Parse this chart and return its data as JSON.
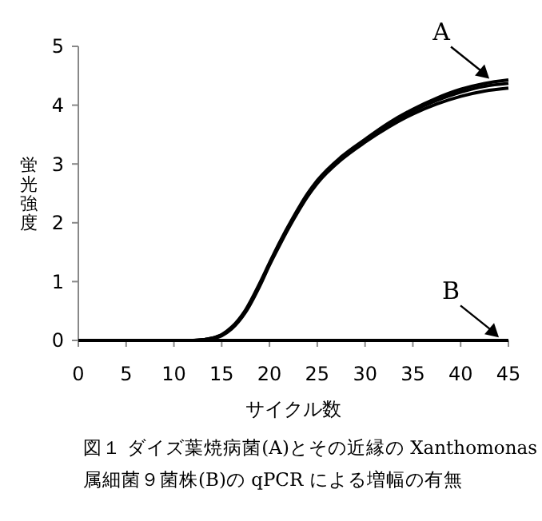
{
  "chart_data": {
    "type": "line",
    "xlabel": "サイクル数",
    "ylabel": "蛍光強度",
    "xlim": [
      0,
      45
    ],
    "ylim": [
      0,
      5
    ],
    "xticks": [
      0,
      5,
      10,
      15,
      20,
      25,
      30,
      35,
      40,
      45
    ],
    "yticks": [
      0,
      1,
      2,
      3,
      4,
      5
    ],
    "grid": false,
    "marker": "none",
    "line_style": "solid",
    "x": [
      0,
      5,
      10,
      12,
      13,
      14,
      15,
      16,
      17.5,
      19,
      20,
      21,
      22.5,
      24,
      25,
      27.5,
      30,
      32.5,
      35,
      37.5,
      40,
      42.5,
      45
    ],
    "series": [
      {
        "color": "#000000",
        "values": [
          0,
          0,
          0,
          0,
          0.01,
          0.04,
          0.1,
          0.22,
          0.52,
          0.98,
          1.32,
          1.65,
          2.1,
          2.5,
          2.72,
          3.12,
          3.42,
          3.7,
          3.93,
          4.12,
          4.27,
          4.37,
          4.43
        ]
      },
      {
        "color": "#000000",
        "values": [
          0,
          0,
          0,
          0,
          0.01,
          0.04,
          0.09,
          0.2,
          0.5,
          0.95,
          1.3,
          1.63,
          2.08,
          2.48,
          2.7,
          3.1,
          3.4,
          3.67,
          3.9,
          4.08,
          4.22,
          4.32,
          4.37
        ]
      },
      {
        "color": "#000000",
        "values": [
          0,
          0,
          0,
          0,
          0.01,
          0.03,
          0.08,
          0.19,
          0.48,
          0.93,
          1.28,
          1.6,
          2.05,
          2.45,
          2.67,
          3.07,
          3.37,
          3.63,
          3.85,
          4.02,
          4.15,
          4.24,
          4.29
        ]
      },
      {
        "color": "#000000",
        "values": [
          0,
          0,
          0,
          0,
          0,
          0,
          0,
          0,
          0,
          0,
          0,
          0,
          0,
          0,
          0,
          0,
          0,
          0,
          0,
          0,
          0,
          0,
          0
        ]
      }
    ],
    "annotations": [
      {
        "text": "A",
        "x": 43,
        "y": 4.45
      },
      {
        "text": "B",
        "x": 44,
        "y": 0.05
      },
      "図１ ダイズ葉焼病菌(A)とその近縁の Xanthomonas",
      "属細菌９菌株(B)の qPCR による増幅の有無"
    ]
  }
}
